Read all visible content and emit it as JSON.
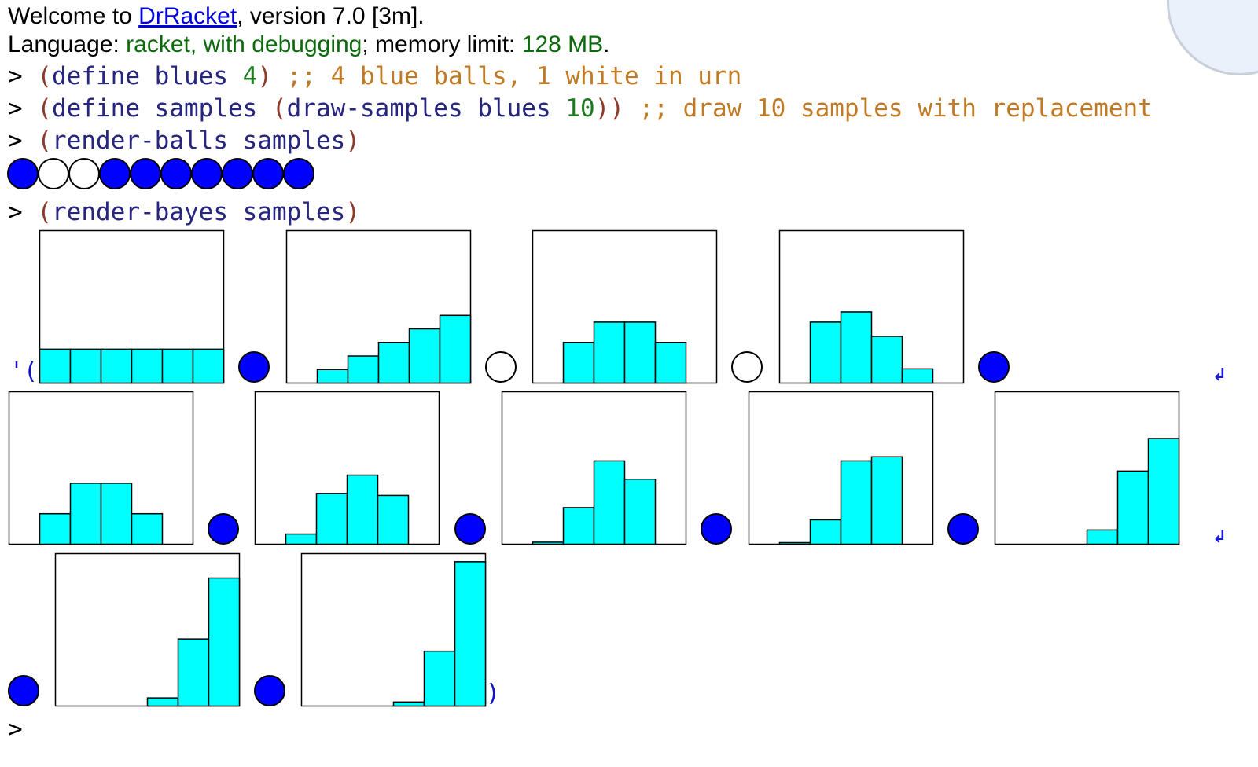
{
  "header": {
    "welcome_prefix": "Welcome to ",
    "app_link": "DrRacket",
    "welcome_suffix": ", version 7.0 [3m].",
    "language_label": "Language: ",
    "language_value": "racket, with debugging",
    "memory_label": "; memory limit: ",
    "memory_value": "128 MB",
    "memory_suffix": "."
  },
  "repl": {
    "prompt": ">",
    "line1": {
      "p1": "(",
      "kw": "define",
      "name": "blues",
      "val": "4",
      "p2": ")",
      "comment": ";; 4 blue balls, 1 white in urn"
    },
    "line2": {
      "p1": "(",
      "kw": "define",
      "name": "samples",
      "p2": "(",
      "fn": "draw-samples",
      "arg": "blues",
      "num": "10",
      "p3": "))",
      "comment": ";; draw 10 samples with replacement"
    },
    "line3": {
      "p1": "(",
      "fn": "render-balls",
      "arg": "samples",
      "p2": ")"
    },
    "line4": {
      "p1": "(",
      "fn": "render-bayes",
      "arg": "samples",
      "p2": ")"
    },
    "result_open": "'(",
    "result_close": ")",
    "wrap_marker": "↲"
  },
  "colors": {
    "ball_blue": "#0000ff",
    "ball_white": "#ffffff",
    "bar_fill": "#00ffff",
    "link": "#0000dd",
    "language_green": "#0b6b0b",
    "comment": "#c07a24",
    "symbol": "#262680",
    "number": "#1e7a1e",
    "paren": "#8b3a2b"
  },
  "ball_samples": [
    "blue",
    "white",
    "white",
    "blue",
    "blue",
    "blue",
    "blue",
    "blue",
    "blue",
    "blue"
  ],
  "chart_data": [
    {
      "type": "bar",
      "values": [
        0.1667,
        0.1667,
        0.1667,
        0.1667,
        0.1667,
        0.1667
      ]
    },
    {
      "type": "bar",
      "values": [
        0,
        0.0667,
        0.1333,
        0.2,
        0.2667,
        0.3333
      ]
    },
    {
      "type": "bar",
      "values": [
        0,
        0.2,
        0.3,
        0.3,
        0.2,
        0
      ]
    },
    {
      "type": "bar",
      "values": [
        0,
        0.3,
        0.35,
        0.23,
        0.07,
        0
      ]
    },
    {
      "type": "bar",
      "values": [
        0,
        0.15,
        0.3,
        0.3,
        0.15,
        0
      ]
    },
    {
      "type": "bar",
      "values": [
        0,
        0.05,
        0.25,
        0.34,
        0.24,
        0
      ]
    },
    {
      "type": "bar",
      "values": [
        0,
        0.01,
        0.18,
        0.41,
        0.32,
        0
      ]
    },
    {
      "type": "bar",
      "values": [
        0,
        0.005,
        0.12,
        0.41,
        0.43,
        0
      ]
    },
    {
      "type": "bar",
      "values": [
        0,
        0,
        0,
        0.07,
        0.36,
        0.52
      ]
    },
    {
      "type": "bar",
      "values": [
        0,
        0,
        0,
        0.04,
        0.33,
        0.63
      ]
    },
    {
      "type": "bar",
      "values": [
        0,
        0,
        0,
        0.02,
        0.27,
        0.71
      ]
    }
  ],
  "result_sequence_balls": [
    "blue",
    "white",
    "white",
    "blue",
    "blue",
    "blue",
    "blue",
    "blue",
    "blue",
    "blue"
  ]
}
